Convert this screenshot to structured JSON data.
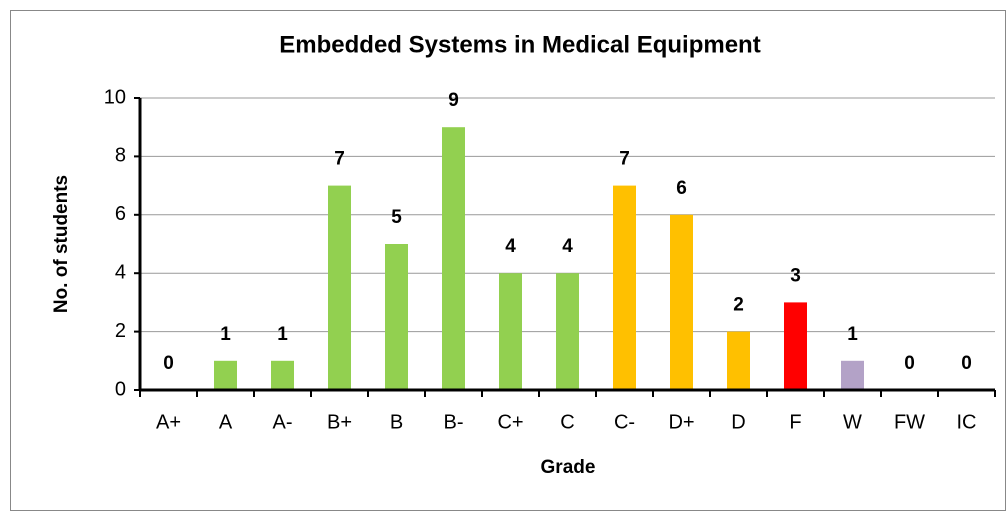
{
  "chart_data": {
    "type": "bar",
    "title": "Embedded Systems in Medical Equipment",
    "x_label": "Grade",
    "y_label": "No. of students",
    "categories": [
      "A+",
      "A",
      "A-",
      "B+",
      "B",
      "B-",
      "C+",
      "C",
      "C-",
      "D+",
      "D",
      "F",
      "W",
      "FW",
      "IC"
    ],
    "values": [
      0,
      1,
      1,
      7,
      5,
      9,
      4,
      4,
      7,
      6,
      2,
      3,
      1,
      0,
      0
    ],
    "colors": [
      "#92d050",
      "#92d050",
      "#92d050",
      "#92d050",
      "#92d050",
      "#92d050",
      "#92d050",
      "#92d050",
      "#ffc000",
      "#ffc000",
      "#ffc000",
      "#ff0000",
      "#b3a2c7",
      "#b3a2c7",
      "#b3a2c7"
    ],
    "ylim": [
      0,
      10
    ],
    "yticks": [
      0,
      2,
      4,
      6,
      8,
      10
    ],
    "grid": true
  }
}
